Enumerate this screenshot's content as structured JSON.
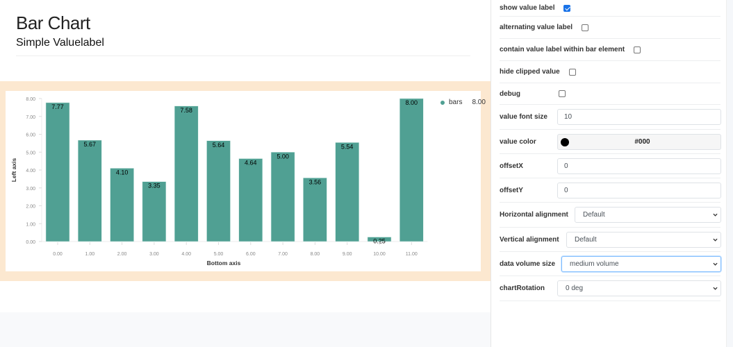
{
  "header": {
    "title": "Bar Chart",
    "subtitle": "Simple Valuelabel"
  },
  "colors": {
    "bar": "#50a093",
    "band": "#fce8d0",
    "value_label": "#000"
  },
  "chart_data": {
    "type": "bar",
    "title": "",
    "xlabel": "Bottom axis",
    "ylabel": "Left axis",
    "categories": [
      "0.00",
      "1.00",
      "2.00",
      "3.00",
      "4.00",
      "5.00",
      "6.00",
      "7.00",
      "8.00",
      "9.00",
      "10.00",
      "11.00"
    ],
    "series": [
      {
        "name": "bars",
        "values": [
          7.77,
          5.67,
          4.1,
          3.35,
          7.58,
          5.64,
          4.64,
          5.0,
          3.56,
          5.54,
          0.25,
          8.0
        ]
      }
    ],
    "value_labels": [
      "7.77",
      "5.67",
      "4.10",
      "3.35",
      "7.58",
      "5.64",
      "4.64",
      "5.00",
      "3.56",
      "5.54",
      "0.25",
      "8.00"
    ],
    "yticks": [
      "0.00",
      "1.00",
      "2.00",
      "3.00",
      "4.00",
      "5.00",
      "6.00",
      "7.00",
      "8.00"
    ],
    "ylim": [
      0,
      8
    ],
    "grid": false,
    "legend": {
      "position": "right",
      "entries": [
        {
          "label": "bars",
          "value": "8.00"
        }
      ]
    }
  },
  "legend": {
    "label": "bars",
    "value": "8.00"
  },
  "settings": {
    "show_value_label": {
      "label": "show value label",
      "checked": true
    },
    "alternating_value_label": {
      "label": "alternating value label",
      "checked": false
    },
    "contain_value_label": {
      "label": "contain value label within bar element",
      "checked": false
    },
    "hide_clipped_value": {
      "label": "hide clipped value",
      "checked": false
    },
    "debug": {
      "label": "debug",
      "checked": false
    },
    "value_font_size": {
      "label": "value font size",
      "value": "10"
    },
    "value_color": {
      "label": "value color",
      "value": "#000"
    },
    "offsetX": {
      "label": "offsetX",
      "value": "0"
    },
    "offsetY": {
      "label": "offsetY",
      "value": "0"
    },
    "horizontal_alignment": {
      "label": "Horizontal alignment",
      "value": "Default"
    },
    "vertical_alignment": {
      "label": "Vertical alignment",
      "value": "Default"
    },
    "data_volume_size": {
      "label": "data volume size",
      "value": "medium volume"
    },
    "chart_rotation": {
      "label": "chartRotation",
      "value": "0 deg"
    }
  }
}
